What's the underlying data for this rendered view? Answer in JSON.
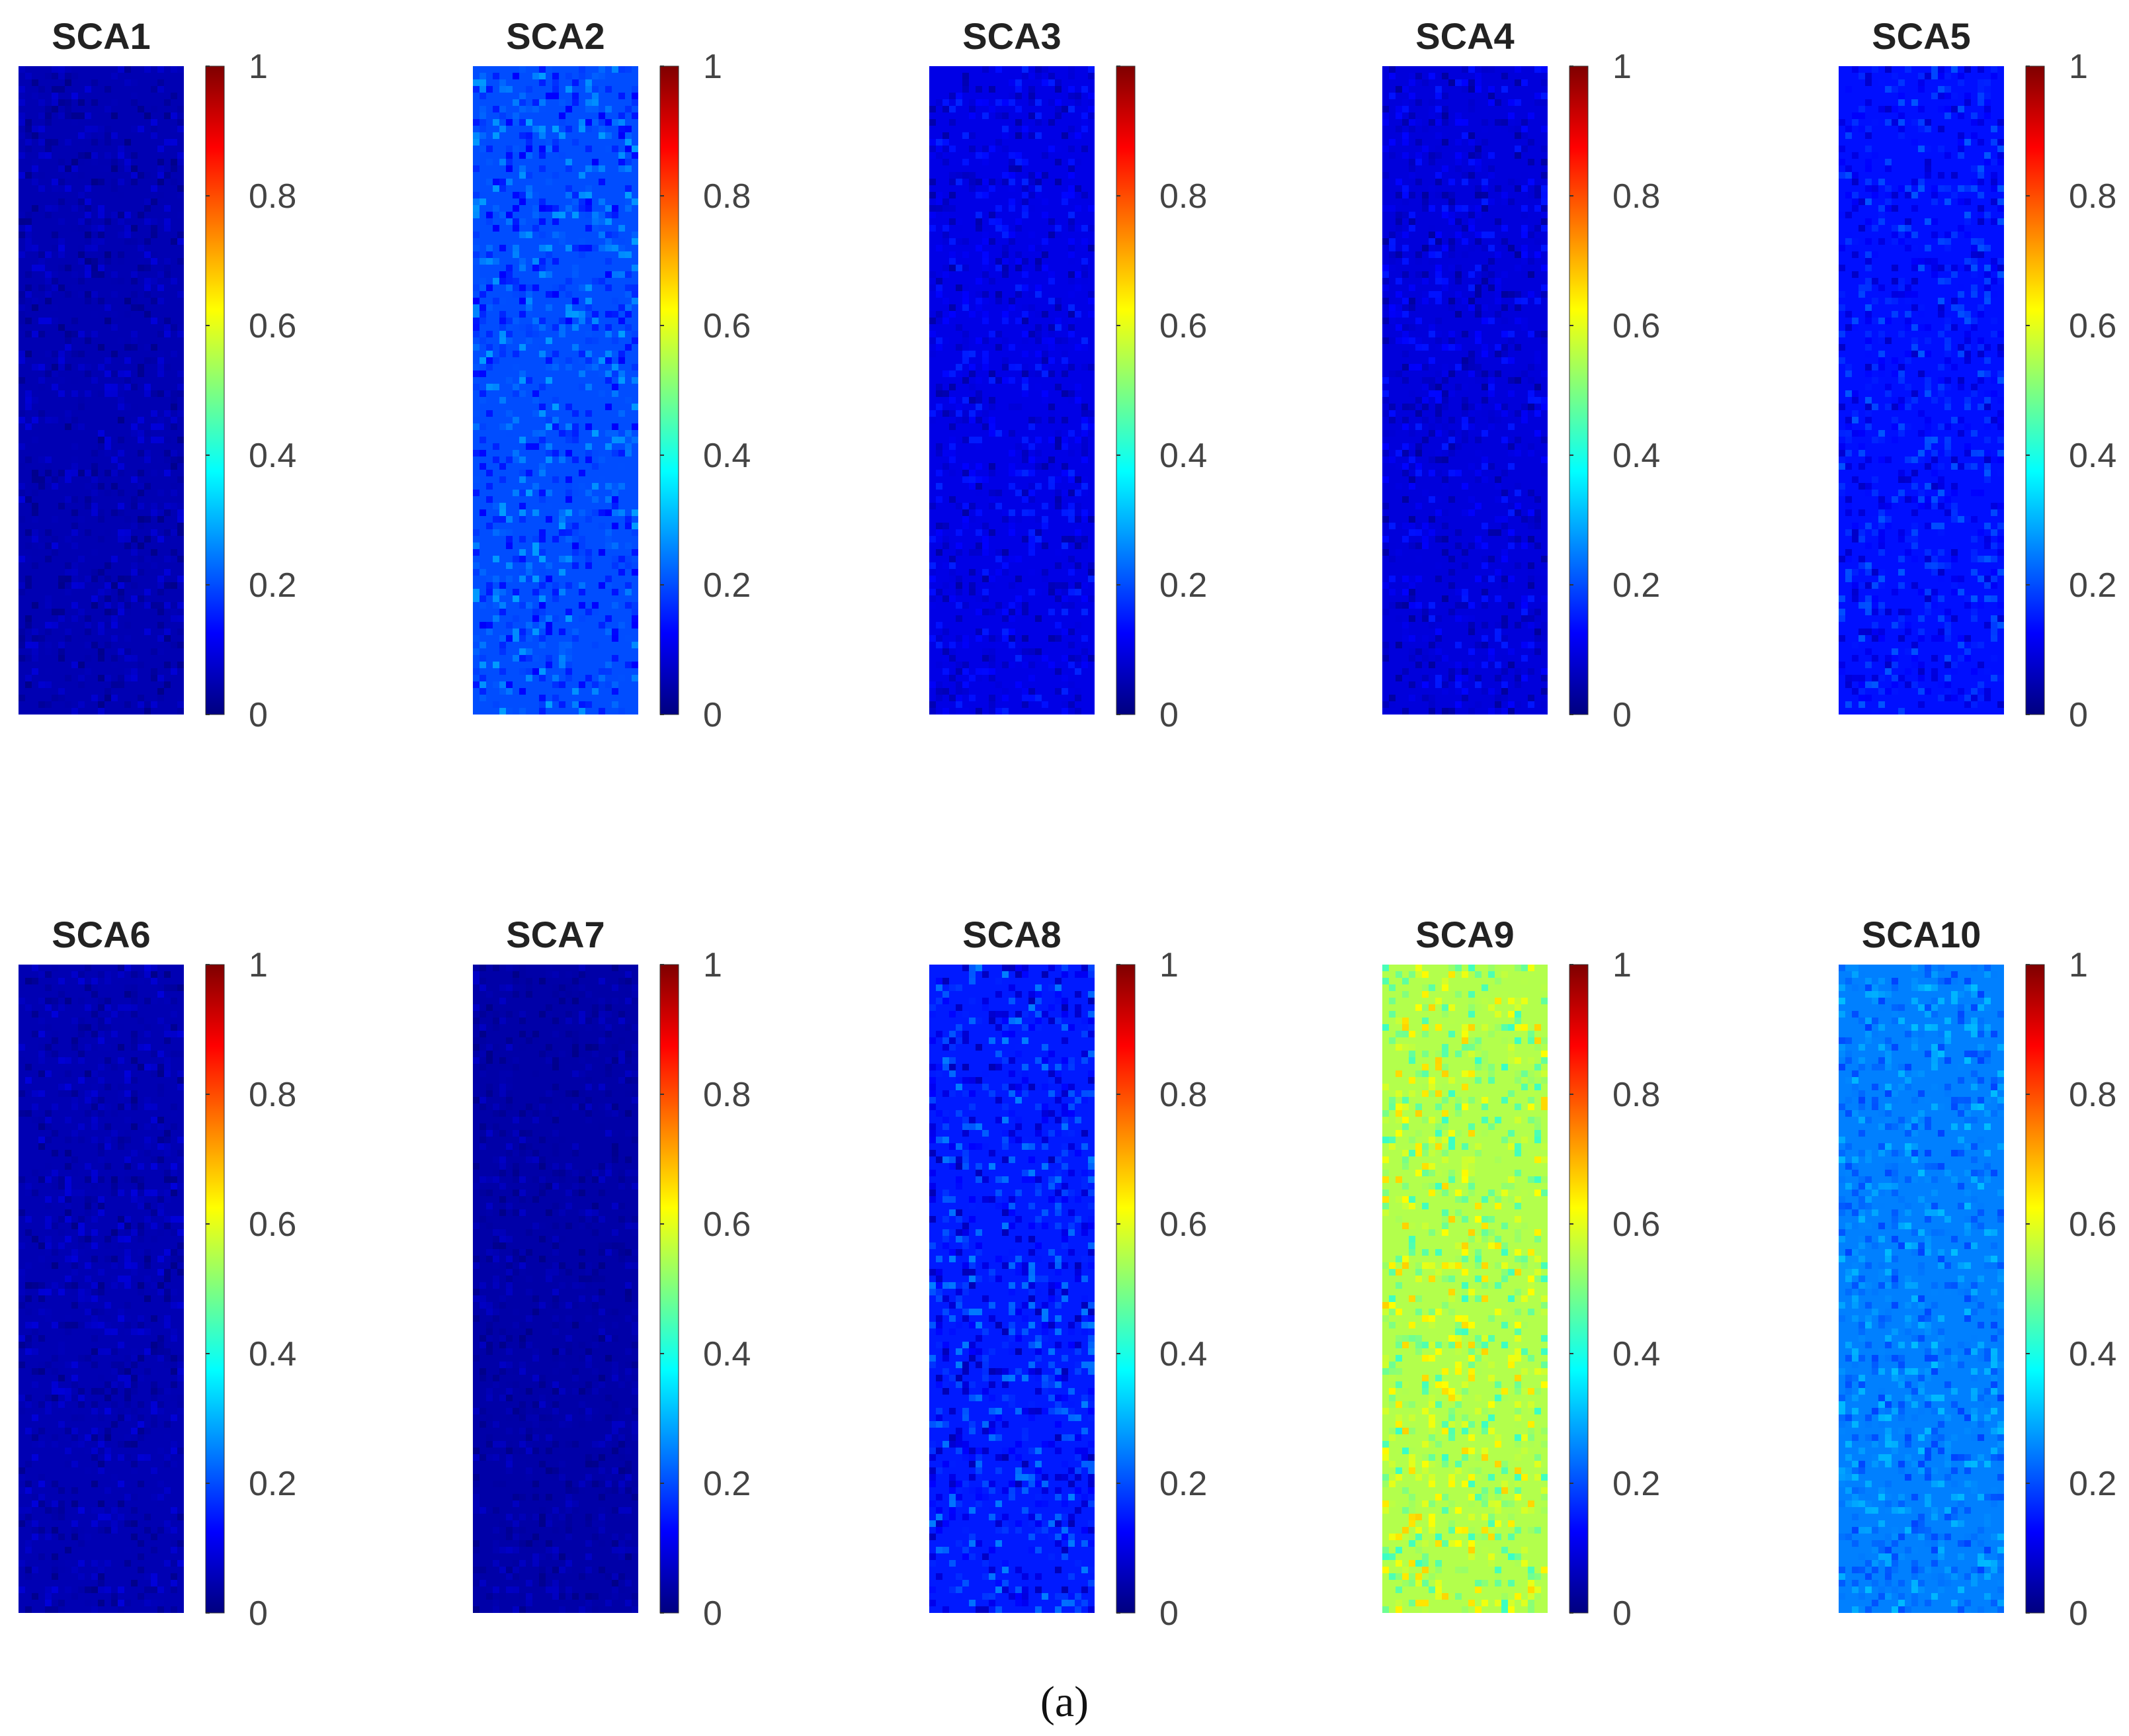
{
  "chart_data": {
    "type": "heatmap",
    "caption": "(a)",
    "colormap": "jet",
    "colormap_stops": [
      "#00007f",
      "#0000ff",
      "#007fff",
      "#00ffff",
      "#7fff7f",
      "#ffff00",
      "#ff7f00",
      "#ff0000",
      "#7f0000"
    ],
    "clim": [
      0,
      1
    ],
    "ticks": [
      {
        "value": 0,
        "label": "0"
      },
      {
        "value": 0.2,
        "label": "0.2"
      },
      {
        "value": 0.4,
        "label": "0.4"
      },
      {
        "value": 0.6,
        "label": "0.6"
      },
      {
        "value": 0.8,
        "label": "0.8"
      },
      {
        "value": 1,
        "label": "1"
      }
    ],
    "panels": [
      {
        "title": "SCA1",
        "mean": 0.05,
        "noise": 0.04,
        "hide_top_tick": false
      },
      {
        "title": "SCA2",
        "mean": 0.2,
        "noise": 0.08,
        "hide_top_tick": false
      },
      {
        "title": "SCA3",
        "mean": 0.1,
        "noise": 0.06,
        "hide_top_tick": true
      },
      {
        "title": "SCA4",
        "mean": 0.09,
        "noise": 0.06,
        "hide_top_tick": false
      },
      {
        "title": "SCA5",
        "mean": 0.14,
        "noise": 0.07,
        "hide_top_tick": false
      },
      {
        "title": "SCA6",
        "mean": 0.05,
        "noise": 0.04,
        "hide_top_tick": false
      },
      {
        "title": "SCA7",
        "mean": 0.04,
        "noise": 0.03,
        "hide_top_tick": false
      },
      {
        "title": "SCA8",
        "mean": 0.15,
        "noise": 0.1,
        "hide_top_tick": false
      },
      {
        "title": "SCA9",
        "mean": 0.55,
        "noise": 0.12,
        "hide_top_tick": false
      },
      {
        "title": "SCA10",
        "mean": 0.25,
        "noise": 0.06,
        "hide_top_tick": false
      }
    ]
  }
}
